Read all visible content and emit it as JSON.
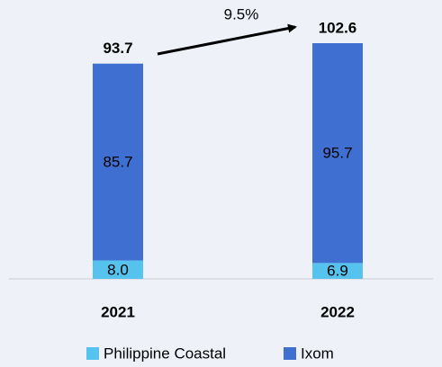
{
  "chart_data": {
    "type": "stacked_bar",
    "categories": [
      "2021",
      "2022"
    ],
    "series": [
      {
        "name": "Philippine Coastal",
        "color": "#56c3ee",
        "values": [
          8.0,
          6.9
        ],
        "value_labels": [
          "8.0",
          "6.9"
        ]
      },
      {
        "name": "Ixom",
        "color": "#3f6fd1",
        "values": [
          85.7,
          95.7
        ]
      }
    ],
    "totals": [
      93.7,
      102.6
    ],
    "annotation": "9.5%"
  }
}
